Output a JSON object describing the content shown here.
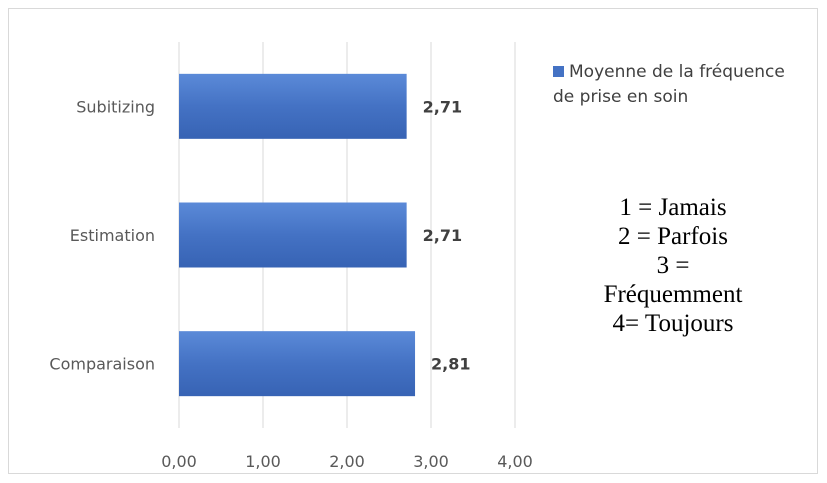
{
  "chart_data": {
    "type": "bar",
    "orientation": "horizontal",
    "categories": [
      "Subitizing",
      "Estimation",
      "Comparaison"
    ],
    "series": [
      {
        "name": "Moyenne de la fréquence de prise en soin",
        "values": [
          2.71,
          2.71,
          2.81
        ]
      }
    ],
    "data_labels": [
      "2,71",
      "2,71",
      "2,81"
    ],
    "x_ticks": [
      0,
      1,
      2,
      3,
      4
    ],
    "x_tick_labels": [
      "0,00",
      "1,00",
      "2,00",
      "3,00",
      "4,00"
    ],
    "xlim": [
      0,
      4
    ],
    "grid": "vertical",
    "legend_position": "right",
    "colors": {
      "bar": "#4472c4",
      "bar_light": "#5b8ad8",
      "bar_dark": "#3763b4",
      "grid": "#d9d9d9",
      "text": "#595959",
      "label": "#404040"
    }
  },
  "legend": {
    "label": "Moyenne de la fréquence de prise en soin"
  },
  "scale_note": {
    "line1": "1 = Jamais",
    "line2": "2 = Parfois",
    "line3": "3 =",
    "line4": "Fréquemment",
    "line5": "4= Toujours"
  }
}
